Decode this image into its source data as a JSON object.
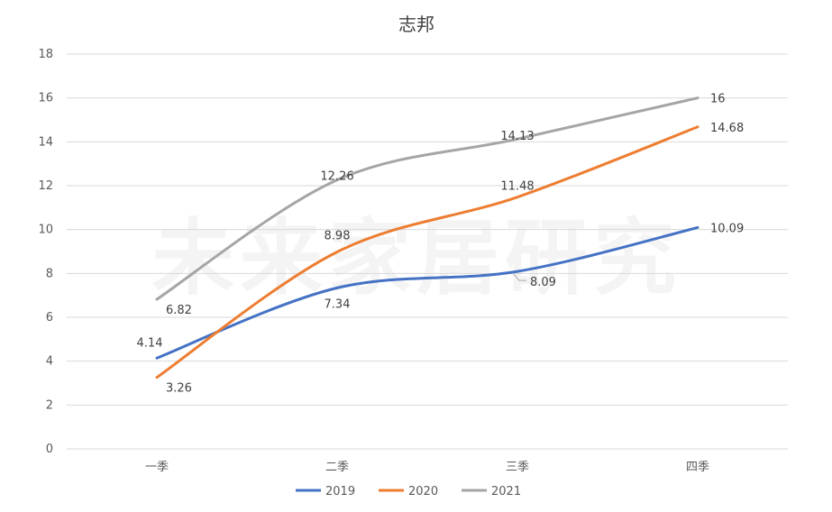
{
  "chart_data": {
    "type": "line",
    "title": "志邦",
    "watermark": "未来家居研究",
    "categories": [
      "一季",
      "二季",
      "三季",
      "四季"
    ],
    "ylim": [
      0,
      18
    ],
    "yticks": [
      0,
      2,
      4,
      6,
      8,
      10,
      12,
      14,
      16,
      18
    ],
    "grid": true,
    "legend_position": "bottom",
    "smooth": true,
    "series": [
      {
        "name": "2019",
        "values": [
          4.14,
          7.34,
          8.09,
          10.09
        ],
        "color": "#4472C4"
      },
      {
        "name": "2020",
        "values": [
          3.26,
          8.98,
          11.48,
          14.68
        ],
        "color": "#ED7D31"
      },
      {
        "name": "2021",
        "values": [
          6.82,
          12.26,
          14.13,
          16
        ],
        "color": "#A5A5A5"
      }
    ],
    "data_labels": [
      [
        "4.14",
        "7.34",
        "8.09",
        "10.09"
      ],
      [
        "3.26",
        "8.98",
        "11.48",
        "14.68"
      ],
      [
        "6.82",
        "12.26",
        "14.13",
        "16"
      ]
    ]
  }
}
